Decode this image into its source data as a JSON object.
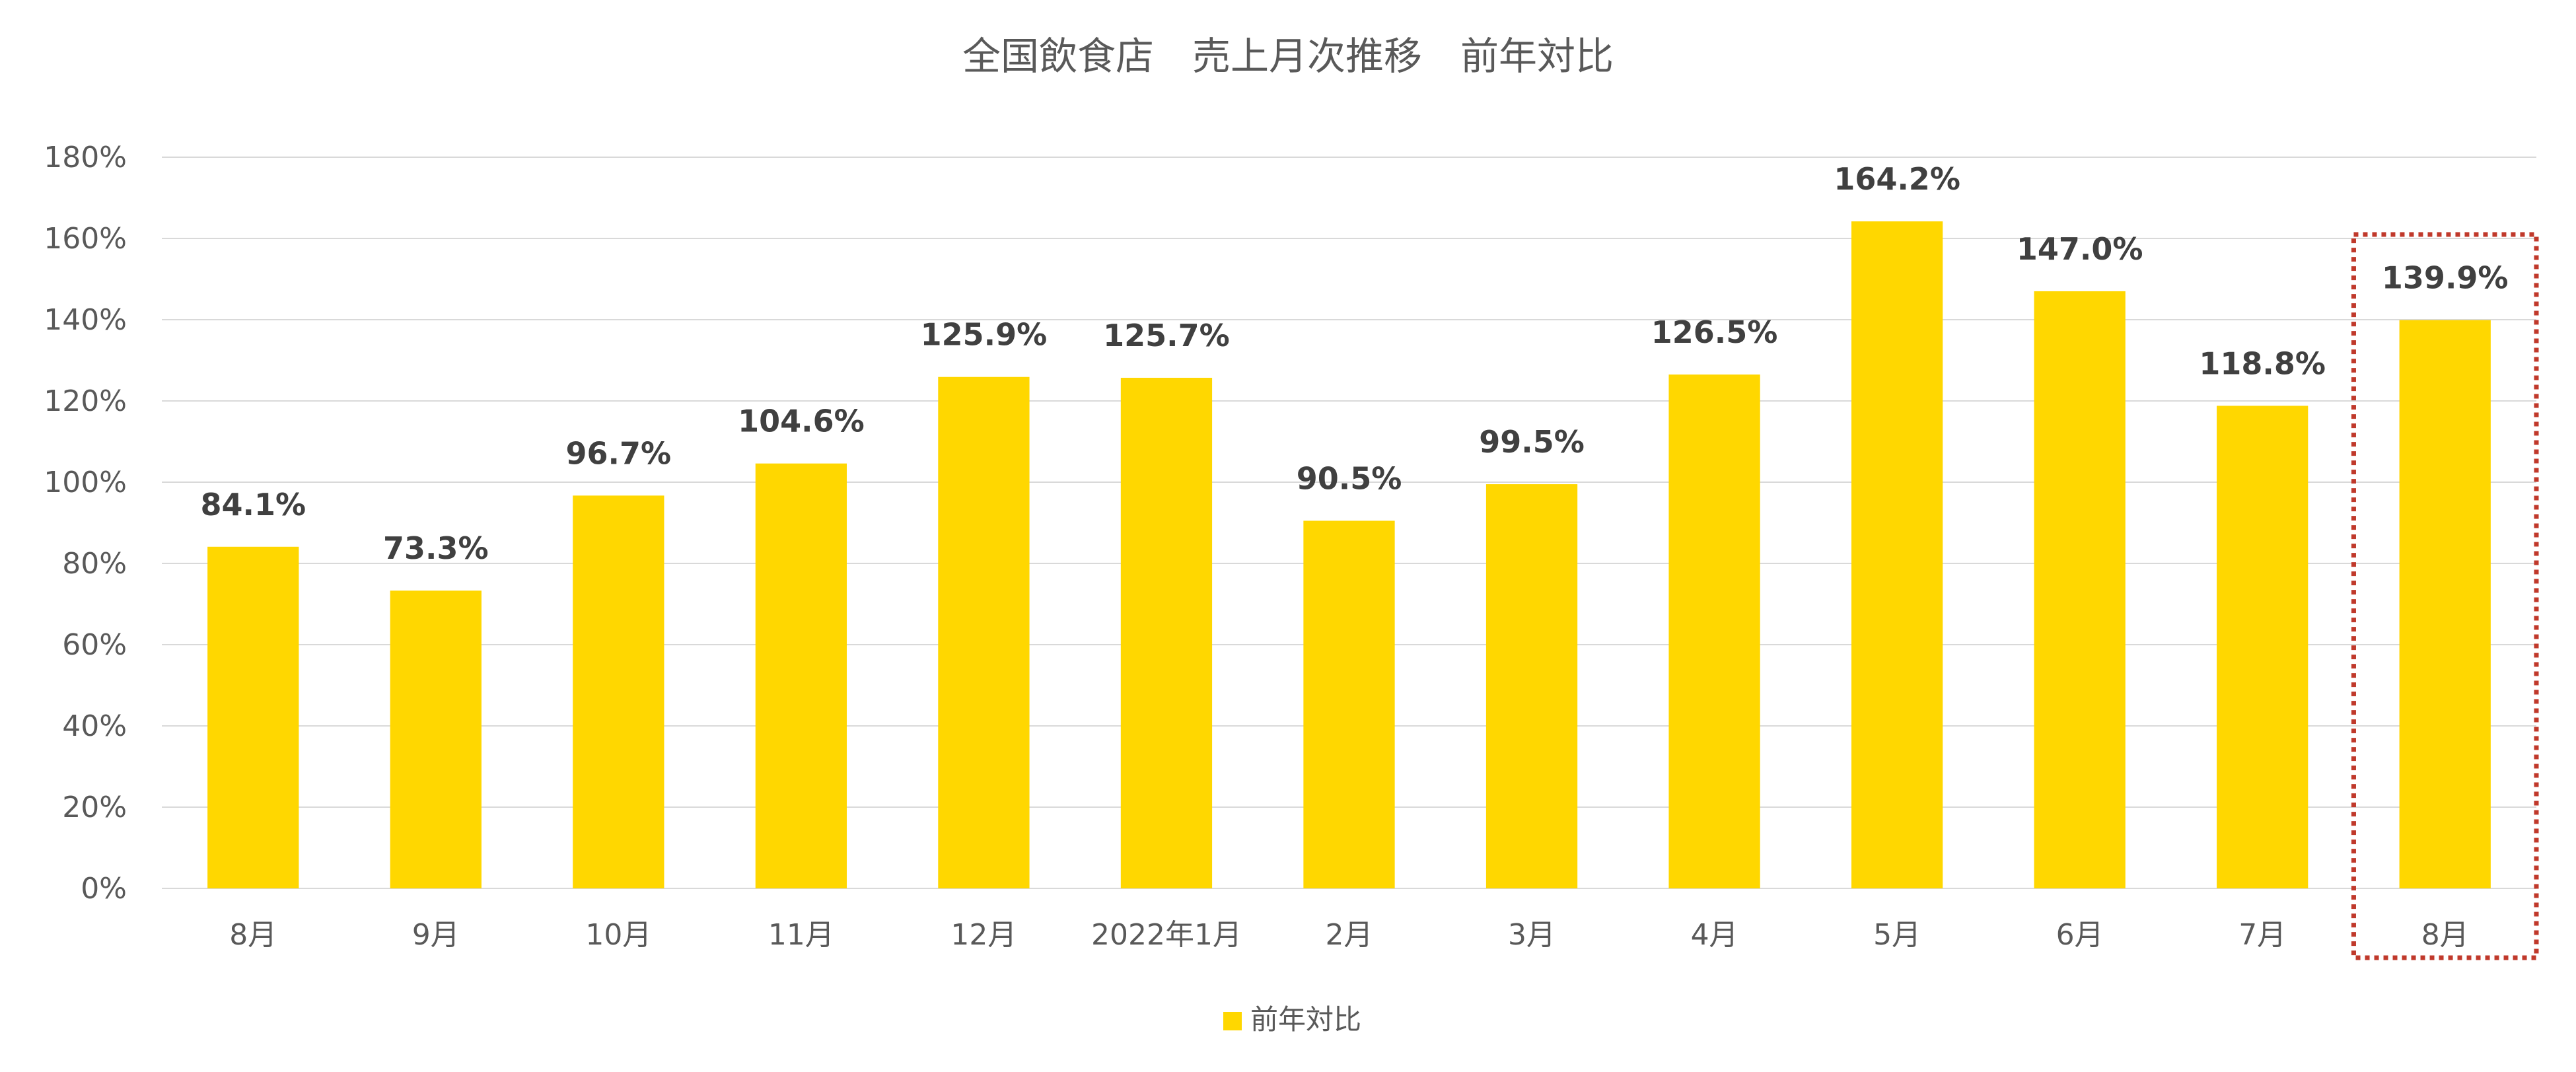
{
  "chart_data": {
    "type": "bar",
    "title": "全国飲食店　売上月次推移　前年対比",
    "xlabel": "",
    "ylabel": "",
    "categories": [
      "8月",
      "9月",
      "10月",
      "11月",
      "12月",
      "2022年1月",
      "2月",
      "3月",
      "4月",
      "5月",
      "6月",
      "7月",
      "8月"
    ],
    "series": [
      {
        "name": "前年対比",
        "values": [
          84.1,
          73.3,
          96.7,
          104.6,
          125.9,
          125.7,
          90.5,
          99.5,
          126.5,
          164.2,
          147.0,
          118.8,
          139.9
        ],
        "data_labels": [
          "84.1%",
          "73.3%",
          "96.7%",
          "104.6%",
          "125.9%",
          "125.7%",
          "90.5%",
          "99.5%",
          "126.5%",
          "164.2%",
          "147.0%",
          "118.8%",
          "139.9%"
        ],
        "color": "#FFD700"
      }
    ],
    "ylim": [
      0,
      180
    ],
    "yticks": [
      0,
      20,
      40,
      60,
      80,
      100,
      120,
      140,
      160,
      180
    ],
    "ytick_labels": [
      "0%",
      "20%",
      "40%",
      "60%",
      "80%",
      "100%",
      "120%",
      "140%",
      "160%",
      "180%"
    ],
    "grid": true,
    "legend_position": "bottom",
    "highlight_index": 12,
    "highlight_color": "#C0392B"
  }
}
